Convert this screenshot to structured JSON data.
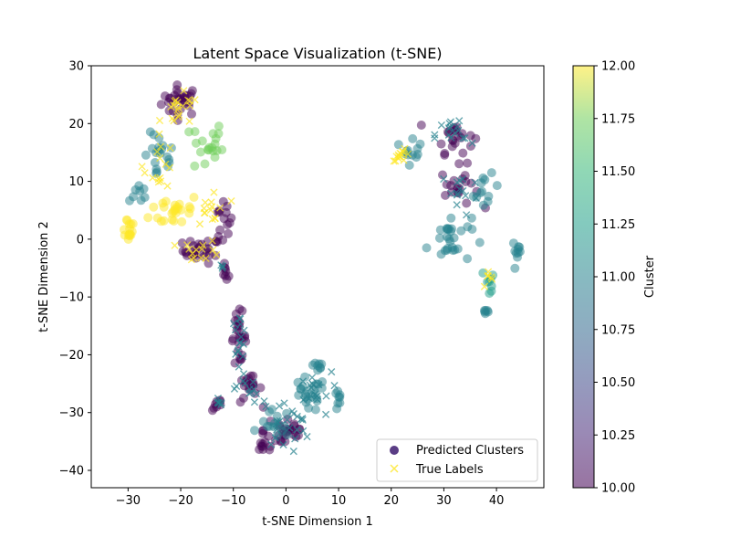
{
  "chart_data": {
    "type": "scatter",
    "title": "Latent Space Visualization (t-SNE)",
    "xlabel": "t-SNE Dimension 1",
    "ylabel": "t-SNE Dimension 2",
    "xlim": [
      -37,
      49
    ],
    "ylim": [
      -43,
      30
    ],
    "xticks": [
      -30,
      -20,
      -10,
      0,
      10,
      20,
      30,
      40
    ],
    "yticks": [
      -40,
      -30,
      -20,
      -10,
      0,
      10,
      20,
      30
    ],
    "xtick_labels": [
      "−30",
      "−20",
      "−10",
      "0",
      "10",
      "20",
      "30",
      "40"
    ],
    "ytick_labels": [
      "−40",
      "−30",
      "−20",
      "−10",
      "0",
      "10",
      "20",
      "30"
    ],
    "grid": false,
    "legend": {
      "placement": "lower-right",
      "entries": [
        "Predicted Clusters",
        "True Labels"
      ]
    },
    "colorbar": {
      "label": "Cluster",
      "range": [
        10.0,
        12.0
      ],
      "ticks": [
        10.0,
        10.25,
        10.5,
        10.75,
        11.0,
        11.25,
        11.5,
        11.75,
        12.0
      ],
      "tick_labels": [
        "10.00",
        "10.25",
        "10.50",
        "10.75",
        "11.00",
        "11.25",
        "11.50",
        "11.75",
        "12.00"
      ],
      "colormap": "viridis"
    },
    "series": [
      {
        "name": "Predicted Clusters",
        "marker": "circle",
        "alpha": 0.5,
        "groups": [
          {
            "cx": -20,
            "cy": 24,
            "sx": 3.0,
            "sy": 2.2,
            "n": 30,
            "c": 10.0
          },
          {
            "cx": -16,
            "cy": -2,
            "sx": 3.0,
            "sy": 1.8,
            "n": 28,
            "c": 10.0
          },
          {
            "cx": -12,
            "cy": 3,
            "sx": 1.5,
            "sy": 3.5,
            "n": 14,
            "c": 10.0
          },
          {
            "cx": -11.5,
            "cy": -6,
            "sx": 0.5,
            "sy": 1.2,
            "n": 8,
            "c": 10.0
          },
          {
            "cx": -24,
            "cy": 14,
            "sx": 2.5,
            "sy": 3.5,
            "n": 20,
            "c": 11.0
          },
          {
            "cx": -28,
            "cy": 8,
            "sx": 1.5,
            "sy": 1.5,
            "n": 8,
            "c": 11.0
          },
          {
            "cx": -15,
            "cy": 16,
            "sx": 2.5,
            "sy": 4.0,
            "n": 20,
            "c": 11.75
          },
          {
            "cx": -30,
            "cy": 2,
            "sx": 1.2,
            "sy": 2.0,
            "n": 15,
            "c": 12.0
          },
          {
            "cx": -21,
            "cy": 5,
            "sx": 4.0,
            "sy": 2.5,
            "n": 25,
            "c": 12.0
          },
          {
            "cx": 32,
            "cy": 18,
            "sx": 3.0,
            "sy": 2.5,
            "n": 22,
            "c": 10.0
          },
          {
            "cx": 33,
            "cy": 9,
            "sx": 3.0,
            "sy": 3.0,
            "n": 20,
            "c": 10.0
          },
          {
            "cx": 31,
            "cy": 0,
            "sx": 3.5,
            "sy": 3.5,
            "n": 28,
            "c": 11.0
          },
          {
            "cx": 24,
            "cy": 16,
            "sx": 1.5,
            "sy": 2.5,
            "n": 12,
            "c": 11.0
          },
          {
            "cx": 38,
            "cy": 8,
            "sx": 2.0,
            "sy": 2.5,
            "n": 12,
            "c": 11.0
          },
          {
            "cx": 44,
            "cy": -2,
            "sx": 0.8,
            "sy": 1.5,
            "n": 10,
            "c": 11.0
          },
          {
            "cx": 38,
            "cy": -12.5,
            "sx": 0.5,
            "sy": 0.6,
            "n": 6,
            "c": 11.0
          },
          {
            "cx": 39,
            "cy": -7,
            "sx": 1.5,
            "sy": 1.5,
            "n": 8,
            "c": 11.25
          },
          {
            "cx": -9,
            "cy": -17,
            "sx": 1.2,
            "sy": 3.5,
            "n": 25,
            "c": 10.0
          },
          {
            "cx": -7,
            "cy": -26,
            "sx": 2.0,
            "sy": 2.0,
            "n": 18,
            "c": 10.0
          },
          {
            "cx": -13,
            "cy": -28.5,
            "sx": 0.8,
            "sy": 1.0,
            "n": 8,
            "c": 10.0
          },
          {
            "cx": 0,
            "cy": -33,
            "sx": 3.5,
            "sy": 3.0,
            "n": 28,
            "c": 10.0
          },
          {
            "cx": -4,
            "cy": -36,
            "sx": 1.5,
            "sy": 1.2,
            "n": 10,
            "c": 10.0
          },
          {
            "cx": 4,
            "cy": -27,
            "sx": 3.0,
            "sy": 2.5,
            "n": 22,
            "c": 11.0
          },
          {
            "cx": 10,
            "cy": -28,
            "sx": 0.6,
            "sy": 1.5,
            "n": 8,
            "c": 11.0
          },
          {
            "cx": 6,
            "cy": -22,
            "sx": 1.0,
            "sy": 1.5,
            "n": 8,
            "c": 11.0
          },
          {
            "cx": -2,
            "cy": -32,
            "sx": 2.5,
            "sy": 2.0,
            "n": 14,
            "c": 11.0
          }
        ]
      },
      {
        "name": "True Labels",
        "marker": "x",
        "alpha": 0.5,
        "groups": [
          {
            "cx": -20,
            "cy": 22,
            "sx": 3.0,
            "sy": 2.5,
            "n": 20,
            "c": 12.0
          },
          {
            "cx": -14,
            "cy": 5,
            "sx": 2.5,
            "sy": 4.0,
            "n": 14,
            "c": 12.0
          },
          {
            "cx": -16,
            "cy": -2,
            "sx": 3.0,
            "sy": 1.5,
            "n": 14,
            "c": 12.0
          },
          {
            "cx": -24,
            "cy": 13,
            "sx": 2.5,
            "sy": 3.5,
            "n": 14,
            "c": 12.0
          },
          {
            "cx": 22,
            "cy": 14.5,
            "sx": 1.5,
            "sy": 0.8,
            "n": 14,
            "c": 12.0
          },
          {
            "cx": 39,
            "cy": -7,
            "sx": 1.5,
            "sy": 1.5,
            "n": 6,
            "c": 12.0
          },
          {
            "cx": -9,
            "cy": -17,
            "sx": 1.2,
            "sy": 3.5,
            "n": 16,
            "c": 11.0
          },
          {
            "cx": -7,
            "cy": -26,
            "sx": 2.0,
            "sy": 2.0,
            "n": 12,
            "c": 11.0
          },
          {
            "cx": 0,
            "cy": -32,
            "sx": 4.0,
            "sy": 3.5,
            "n": 26,
            "c": 11.0
          },
          {
            "cx": 5,
            "cy": -26,
            "sx": 3.0,
            "sy": 2.5,
            "n": 16,
            "c": 11.0
          },
          {
            "cx": -13,
            "cy": -28.5,
            "sx": 0.8,
            "sy": 1.0,
            "n": 6,
            "c": 11.0
          },
          {
            "cx": 32,
            "cy": 18,
            "sx": 3.0,
            "sy": 2.5,
            "n": 16,
            "c": 11.0
          },
          {
            "cx": 33,
            "cy": 8,
            "sx": 3.0,
            "sy": 3.5,
            "n": 14,
            "c": 11.0
          },
          {
            "cx": -12,
            "cy": -5,
            "sx": 0.5,
            "sy": 1.0,
            "n": 4,
            "c": 11.0
          }
        ]
      }
    ]
  }
}
